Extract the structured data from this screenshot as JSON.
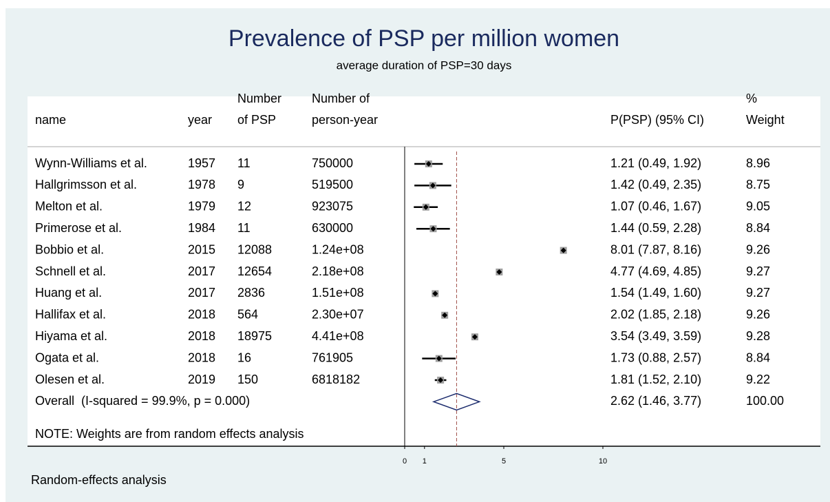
{
  "chart_data": {
    "type": "forest",
    "title": "Prevalence of PSP per million women",
    "subtitle": "average duration of PSP=30 days",
    "headers": [
      [
        "name"
      ],
      [
        "year"
      ],
      [
        "Number",
        "of PSP"
      ],
      [
        "Number of",
        "person-year"
      ],
      [
        "P(PSP) (95% CI)"
      ],
      [
        "%",
        "Weight"
      ]
    ],
    "categories": [
      "Wynn-Williams et al.",
      "Hallgrimsson et al.",
      "Melton et al.",
      "Primerose et al.",
      "Bobbio et al.",
      "Schnell et al.",
      "Huang et al.",
      "Hallifax et al.",
      "Hiyama et al.",
      "Ogata et al.",
      "Olesen et al."
    ],
    "years": [
      1957,
      1978,
      1979,
      1984,
      2015,
      2017,
      2017,
      2018,
      2018,
      2018,
      2019
    ],
    "n_psp": [
      11,
      9,
      12,
      11,
      12088,
      12654,
      2836,
      564,
      18975,
      16,
      150
    ],
    "person_years": [
      "750000",
      "519500",
      "923075",
      "630000",
      "1.24e+08",
      "2.18e+08",
      "1.51e+08",
      "2.30e+07",
      "4.41e+08",
      "761905",
      "6818182"
    ],
    "values": [
      1.21,
      1.42,
      1.07,
      1.44,
      8.01,
      4.77,
      1.54,
      2.02,
      3.54,
      1.73,
      1.81
    ],
    "lower": [
      0.49,
      0.49,
      0.46,
      0.59,
      7.87,
      4.69,
      1.49,
      1.85,
      3.49,
      0.88,
      1.52
    ],
    "upper": [
      1.92,
      2.35,
      1.67,
      2.28,
      8.16,
      4.85,
      1.6,
      2.18,
      3.59,
      2.57,
      2.1
    ],
    "value_labels": [
      "1.21 (0.49, 1.92)",
      "1.42 (0.49, 2.35)",
      "1.07 (0.46, 1.67)",
      "1.44 (0.59, 2.28)",
      "8.01 (7.87, 8.16)",
      "4.77 (4.69, 4.85)",
      "1.54 (1.49, 1.60)",
      "2.02 (1.85, 2.18)",
      "3.54 (3.49, 3.59)",
      "1.73 (0.88, 2.57)",
      "1.81 (1.52, 2.10)"
    ],
    "weights": [
      "8.96",
      "8.75",
      "9.05",
      "8.84",
      "9.26",
      "9.27",
      "9.27",
      "9.26",
      "9.28",
      "8.84",
      "9.22"
    ],
    "overall": {
      "name": "Overall  (I-squared = 99.9%, p = 0.000)",
      "value": 2.62,
      "lower": 1.46,
      "upper": 3.77,
      "value_label": "2.62 (1.46, 3.77)",
      "weight": "100.00"
    },
    "note": "NOTE: Weights are from random effects analysis",
    "footnote": "Random-effects analysis",
    "xlim": [
      0,
      10
    ],
    "xticks": [
      0,
      1,
      5,
      10
    ],
    "grid": false,
    "color": "#000000",
    "box_color": "#a0a0a0",
    "overall_color": "#1a2a6c",
    "line_color": "#a0504a"
  }
}
